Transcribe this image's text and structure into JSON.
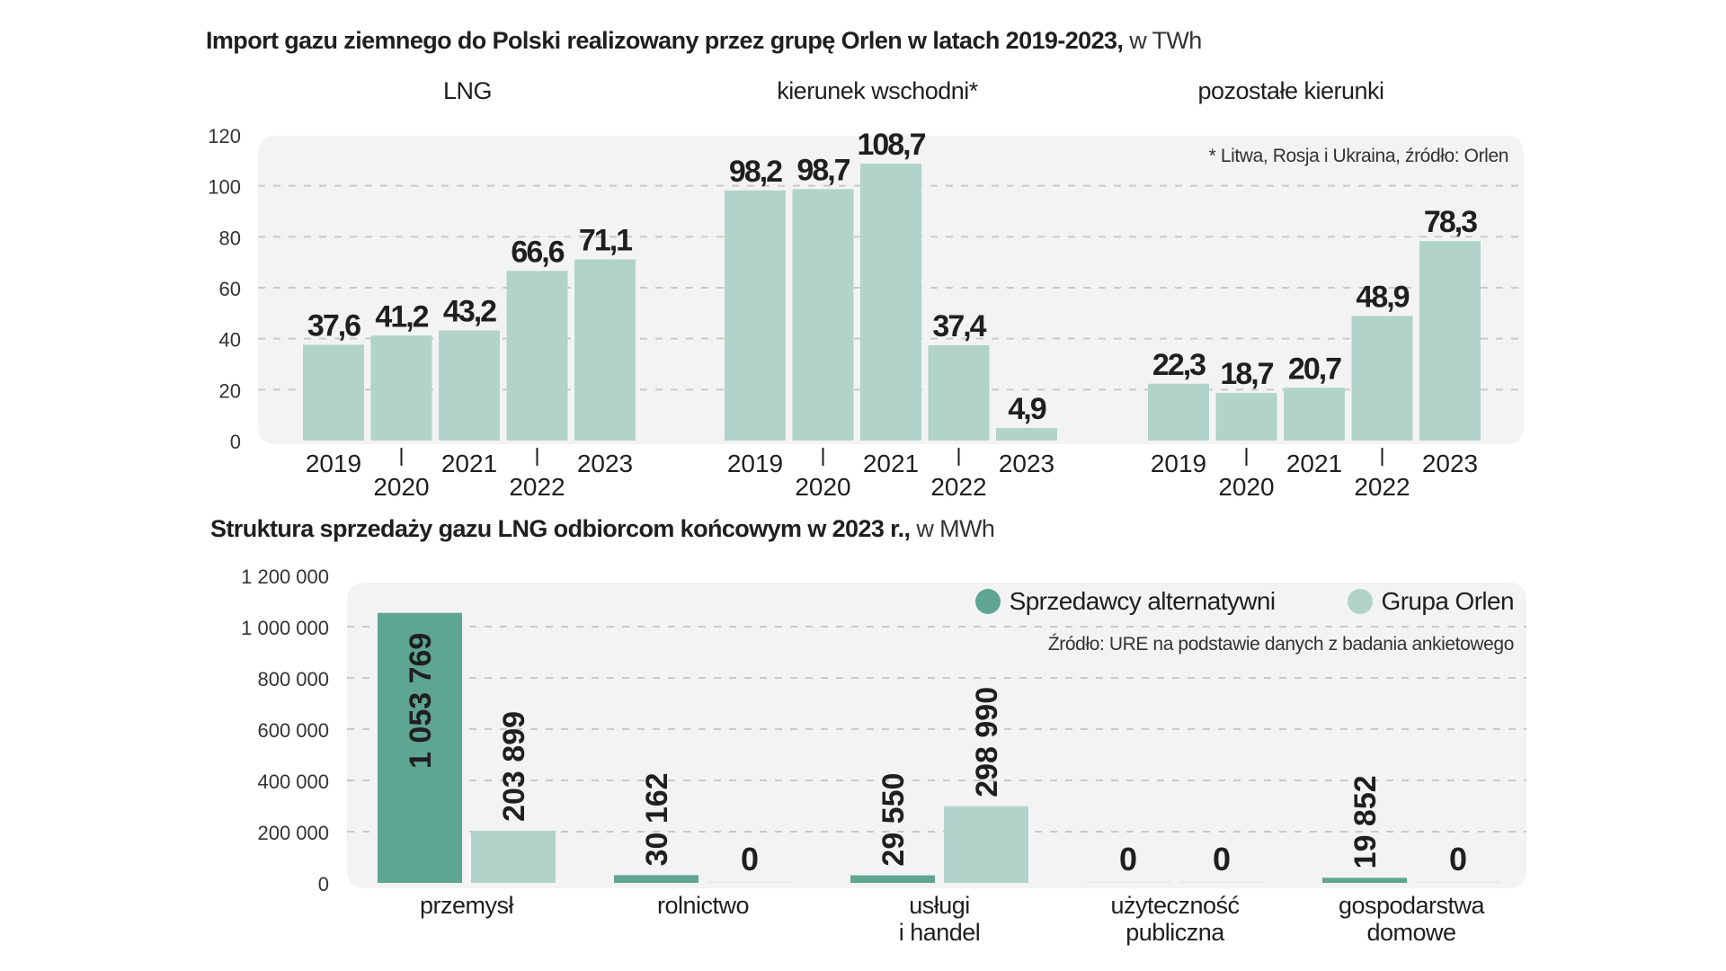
{
  "colors": {
    "bar_light": "#b1d3ca",
    "bar_dark": "#5ea592",
    "panel_bg": "#f3f3f3",
    "grid": "#c9c9c9",
    "text": "#1f1f1f"
  },
  "chart_data": [
    {
      "type": "bar",
      "title": "Import gazu ziemnego do Polski realizowany przez grupę Orlen w latach 2019-2023,",
      "title_unit": "w TWh",
      "ylabel": "TWh",
      "ylim": [
        0,
        120
      ],
      "yticks": [
        "0",
        "20",
        "40",
        "60",
        "80",
        "100",
        "120"
      ],
      "yticks_values": [
        0,
        20,
        40,
        60,
        80,
        100,
        120
      ],
      "grid": true,
      "note": "* Litwa, Rosja i Ukraina, źródło: Orlen",
      "categories": [
        "2019",
        "2020",
        "2021",
        "2022",
        "2023"
      ],
      "groups": [
        {
          "name": "LNG",
          "values": [
            37.6,
            41.2,
            43.2,
            66.6,
            71.1
          ],
          "labels": [
            "37,6",
            "41,2",
            "43,2",
            "66,6",
            "71,1"
          ]
        },
        {
          "name": "kierunek wschodni*",
          "values": [
            98.2,
            98.7,
            108.7,
            37.4,
            4.9
          ],
          "labels": [
            "98,2",
            "98,7",
            "108,7",
            "37,4",
            "4,9"
          ]
        },
        {
          "name": "pozostałe kierunki",
          "values": [
            22.3,
            18.7,
            20.7,
            48.9,
            78.3
          ],
          "labels": [
            "22,3",
            "18,7",
            "20,7",
            "48,9",
            "78,3"
          ]
        }
      ]
    },
    {
      "type": "bar",
      "title": "Struktura sprzedaży gazu LNG odbiorcom końcowym w 2023 r.,",
      "title_unit": "w MWh",
      "ylim": [
        0,
        1200000
      ],
      "yticks": [
        "0",
        "200 000",
        "400 000",
        "600 000",
        "800 000",
        "1 000 000",
        "1 200 000"
      ],
      "yticks_values": [
        0,
        200000,
        400000,
        600000,
        800000,
        1000000,
        1200000
      ],
      "grid": true,
      "legend_position": "top-right",
      "note": "Źródło: URE na podstawie danych z badania ankietowego",
      "categories": [
        "przemysł",
        "rolnictwo",
        "usługi\ni handel",
        "użyteczność\npubliczna",
        "gospodarstwa\ndomowe"
      ],
      "series": [
        {
          "name": "Sprzedawcy alternatywni",
          "values": [
            1053769,
            30162,
            29550,
            0,
            19852
          ],
          "labels": [
            "1 053 769",
            "30 162",
            "29 550",
            "0",
            "19 852"
          ]
        },
        {
          "name": "Grupa Orlen",
          "values": [
            203899,
            0,
            298990,
            0,
            0
          ],
          "labels": [
            "203 899",
            "0",
            "298 990",
            "0",
            "0"
          ]
        }
      ]
    }
  ]
}
